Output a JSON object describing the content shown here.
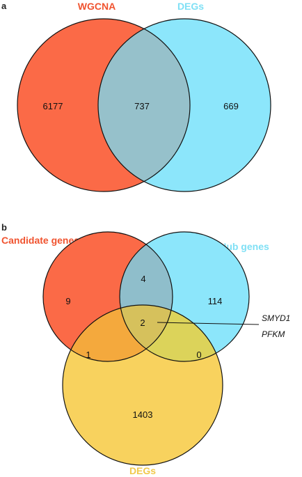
{
  "colors": {
    "wgcna": "#fb6a47",
    "degs_blue": "#8ce6fb",
    "overlap_ab": "#96c1cb",
    "candidate": "#fb6a47",
    "hub": "#8ce6fb",
    "degs_yellow": "#f8d25e",
    "cand_hub": "#8fbecb",
    "cand_degs": "#f4a93d",
    "hub_degs": "#dcd35a",
    "center": "#d6c15c",
    "label_wgcna": "#f0532f",
    "label_degs_blue": "#7fe0f5",
    "label_candidate": "#f0532f",
    "label_hub": "#7fe0f5",
    "label_degs_yellow": "#f1c94c"
  },
  "panel_a": {
    "label": "a",
    "set_labels": {
      "left": "WGCNA",
      "right": "DEGs"
    },
    "counts": {
      "left_only": "6177",
      "overlap": "737",
      "right_only": "669"
    }
  },
  "panel_b": {
    "label": "b",
    "set_labels": {
      "candidate": "Candidate genes",
      "hub": "Hub genes",
      "degs": "DEGs"
    },
    "counts": {
      "candidate_only": "9",
      "candidate_hub": "4",
      "hub_only": "114",
      "all_three": "2",
      "candidate_degs": "1",
      "hub_degs": "0",
      "degs_only": "1403"
    },
    "annotation": {
      "gene_1": "SMYD1",
      "gene_2": "PFKM"
    }
  }
}
